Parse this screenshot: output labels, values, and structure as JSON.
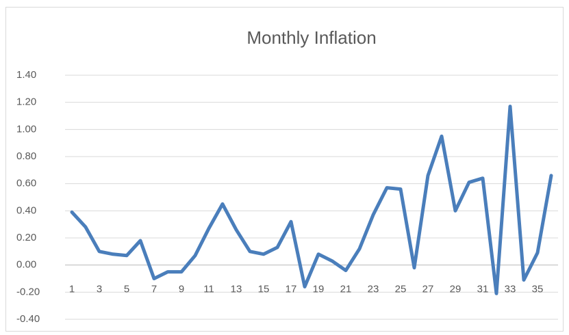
{
  "chart_data": {
    "type": "line",
    "title": "Monthly Inflation",
    "categories": [
      "1",
      null,
      "3",
      null,
      "5",
      null,
      "7",
      null,
      "9",
      null,
      "11",
      null,
      "13",
      null,
      "15",
      null,
      "17",
      null,
      "19",
      null,
      "21",
      null,
      "23",
      null,
      "25",
      null,
      "27",
      null,
      "29",
      null,
      "31",
      null,
      "33",
      null,
      "35",
      null
    ],
    "series": [
      {
        "name": "Monthly Inflation",
        "color": "#4a7ebb",
        "values": [
          0.39,
          0.28,
          0.1,
          0.08,
          0.07,
          0.18,
          -0.1,
          -0.05,
          -0.05,
          0.07,
          0.27,
          0.45,
          0.26,
          0.1,
          0.08,
          0.13,
          0.32,
          -0.16,
          0.08,
          0.03,
          -0.04,
          0.12,
          0.37,
          0.57,
          0.56,
          -0.02,
          0.66,
          0.95,
          0.4,
          0.61,
          0.64,
          -0.21,
          1.17,
          -0.11,
          0.09,
          0.66
        ]
      }
    ],
    "ylim": [
      -0.4,
      1.4
    ],
    "yticks": [
      {
        "value": -0.4,
        "label": "-0.40"
      },
      {
        "value": -0.2,
        "label": "-0.20"
      },
      {
        "value": 0,
        "label": "0.00"
      },
      {
        "value": 0.2,
        "label": "0.20"
      },
      {
        "value": 0.4,
        "label": "0.40"
      },
      {
        "value": 0.6,
        "label": "0.60"
      },
      {
        "value": 0.8,
        "label": "0.80"
      },
      {
        "value": 1.0,
        "label": "1.00"
      },
      {
        "value": 1.2,
        "label": "1.20"
      },
      {
        "value": 1.4,
        "label": "1.40"
      }
    ],
    "grid": true
  }
}
